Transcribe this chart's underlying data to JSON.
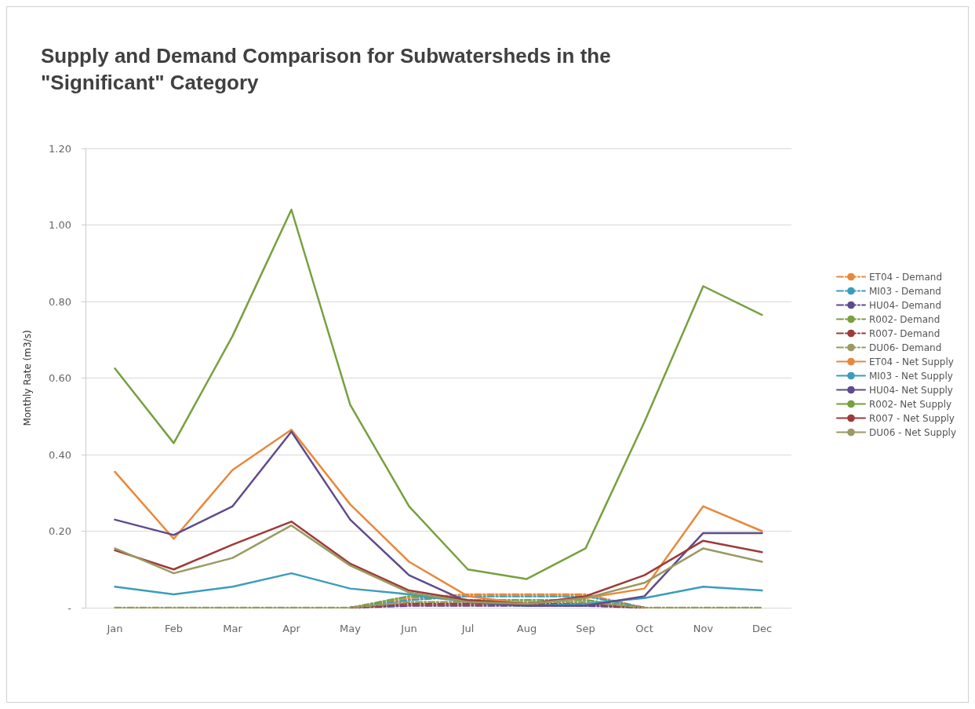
{
  "chart_data": {
    "type": "line",
    "title": "Supply and Demand Comparison for Subwatersheds in the \"Significant\" Category",
    "ylabel": "Monthly Rate (m3/s)",
    "categories": [
      "Jan",
      "Feb",
      "Mar",
      "Apr",
      "May",
      "Jun",
      "Jul",
      "Aug",
      "Sep",
      "Oct",
      "Nov",
      "Dec"
    ],
    "ylim": [
      0,
      1.2
    ],
    "yticks": [
      {
        "value": 0,
        "label": "-"
      },
      {
        "value": 0.2,
        "label": "0.20"
      },
      {
        "value": 0.4,
        "label": "0.40"
      },
      {
        "value": 0.6,
        "label": "0.60"
      },
      {
        "value": 0.8,
        "label": "0.80"
      },
      {
        "value": 1.0,
        "label": "1.00"
      },
      {
        "value": 1.2,
        "label": "1.20"
      }
    ],
    "grid": "y",
    "legend": "right",
    "marker": "none",
    "line_style": "solid",
    "series": [
      {
        "name": "ET04 - Demand",
        "color": "#e8883a",
        "line_style": "dashed",
        "values": [
          null,
          null,
          null,
          null,
          0,
          0.025,
          0.035,
          0.035,
          0.035,
          0,
          null,
          null
        ]
      },
      {
        "name": "MI03 - Demand",
        "color": "#3b9dbd",
        "line_style": "dashed",
        "values": [
          null,
          null,
          null,
          null,
          0,
          0.02,
          0.03,
          0.03,
          0.03,
          0,
          null,
          null
        ]
      },
      {
        "name": "HU04- Demand",
        "color": "#5f4b8b",
        "line_style": "dashed",
        "values": [
          null,
          null,
          null,
          null,
          0,
          0.005,
          0.005,
          0.005,
          0.005,
          0,
          null,
          null
        ]
      },
      {
        "name": "R002- Demand",
        "color": "#77a03f",
        "line_style": "dashed",
        "values": [
          null,
          null,
          null,
          null,
          0,
          0.03,
          0.02,
          0.02,
          0.02,
          0,
          null,
          null
        ]
      },
      {
        "name": "R007- Demand",
        "color": "#9e3a3a",
        "line_style": "dashed",
        "values": [
          null,
          null,
          null,
          null,
          0,
          0.01,
          0.01,
          0.01,
          0.01,
          0,
          null,
          null
        ]
      },
      {
        "name": "DU06- Demand",
        "color": "#9a9a62",
        "line_style": "dashed",
        "values": [
          0,
          0,
          0,
          0,
          0,
          0.015,
          0.015,
          0.015,
          0.015,
          0,
          0,
          0
        ]
      },
      {
        "name": "ET04 - Net Supply",
        "color": "#e8883a",
        "values": [
          0.355,
          0.18,
          0.36,
          0.465,
          0.27,
          0.12,
          0.03,
          0.01,
          0.025,
          0.05,
          0.265,
          0.2
        ]
      },
      {
        "name": "MI03 - Net Supply",
        "color": "#3b9dbd",
        "values": [
          0.055,
          0.035,
          0.055,
          0.09,
          0.05,
          0.035,
          0.015,
          0.005,
          0.01,
          0.025,
          0.055,
          0.045
        ]
      },
      {
        "name": "HU04- Net Supply",
        "color": "#5f4b8b",
        "values": [
          0.23,
          0.19,
          0.265,
          0.46,
          0.23,
          0.085,
          0.015,
          0.005,
          0.005,
          0.03,
          0.195,
          0.195
        ]
      },
      {
        "name": "R002- Net Supply",
        "color": "#77a03f",
        "values": [
          0.625,
          0.43,
          0.71,
          1.04,
          0.53,
          0.265,
          0.1,
          0.075,
          0.155,
          0.485,
          0.84,
          0.765
        ]
      },
      {
        "name": "R007 - Net Supply",
        "color": "#9e3a3a",
        "values": [
          0.15,
          0.1,
          0.165,
          0.225,
          0.115,
          0.045,
          0.02,
          0.01,
          0.03,
          0.085,
          0.175,
          0.145
        ]
      },
      {
        "name": "DU06 - Net Supply",
        "color": "#9a9a62",
        "values": [
          0.155,
          0.09,
          0.13,
          0.215,
          0.11,
          0.04,
          0.015,
          0.01,
          0.025,
          0.065,
          0.155,
          0.12
        ]
      }
    ]
  }
}
